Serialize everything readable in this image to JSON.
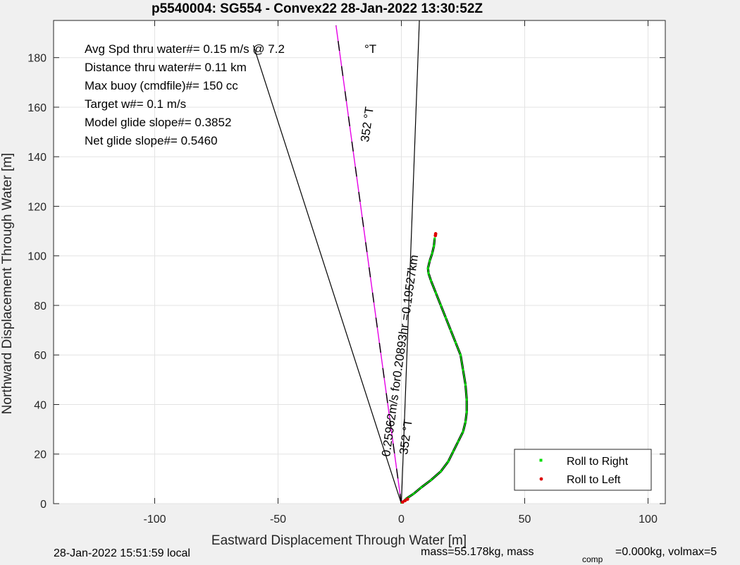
{
  "chart_data": {
    "type": "line",
    "title": "p5540004: SG554 - Convex22 28-Jan-2022 13:30:52Z",
    "xlabel": "Eastward Displacement Through Water [m]",
    "ylabel": "Northward Displacement Through Water [m]",
    "xlim": [
      -141,
      107
    ],
    "ylim": [
      0,
      195
    ],
    "xticks": [
      -100,
      -50,
      0,
      50,
      100
    ],
    "yticks": [
      0,
      20,
      40,
      60,
      80,
      100,
      120,
      140,
      160,
      180
    ],
    "xtick_labels": [
      "-100",
      "-50",
      "0",
      "50",
      "100"
    ],
    "ytick_labels": [
      "0",
      "20",
      "40",
      "60",
      "80",
      "100",
      "120",
      "140",
      "160",
      "180"
    ],
    "grid": true,
    "legend_position": "bottom-right",
    "annotations": [
      "Avg Spd thru water#=  0.15 m/s @   7.2",
      "°T",
      "Distance thru water#=  0.11 km",
      "Max buoy (cmdfile)#= 150 cc",
      "Target w#= 0.1 m/s",
      "Model glide slope#= 0.3852",
      "Net glide slope#= 0.5460"
    ],
    "bearing_label_upper": "352 °T",
    "bearing_label_lower": "352 °T",
    "current_label": "0.25962m/s for0.20893hr =0.19527km",
    "reference_lines": [
      {
        "from": [
          0,
          0
        ],
        "to": [
          -60,
          185
        ],
        "color": "#000000"
      },
      {
        "from": [
          0,
          0
        ],
        "to": [
          7.3,
          195
        ],
        "color": "#000000"
      },
      {
        "from": [
          0,
          0
        ],
        "to": [
          -26.5,
          193
        ],
        "color": "#e600e6",
        "dashed_overlay": "#000000"
      }
    ],
    "series": [
      {
        "name": "Roll to Right",
        "color": "#00dd00",
        "marker": "square",
        "x": [
          0,
          2,
          5,
          8,
          12,
          16,
          19,
          21,
          23,
          25,
          26,
          26.5,
          26.5,
          26,
          25,
          24,
          22,
          20,
          18,
          16,
          14,
          12,
          11,
          10.8,
          11.5,
          12.5,
          13.2,
          13.5
        ],
        "y": [
          0,
          2,
          4,
          6.5,
          9.5,
          13,
          17,
          21,
          25,
          29,
          33,
          37,
          42,
          48,
          54,
          60,
          65,
          70,
          75,
          80,
          85,
          90,
          93,
          95,
          98,
          101,
          104,
          107
        ]
      },
      {
        "name": "Roll to Left",
        "color": "#dd0000",
        "marker": "circle",
        "x": [
          0.5,
          1.5,
          2.5,
          13.8,
          13.9
        ],
        "y": [
          0.6,
          1.2,
          1.8,
          108.2,
          108.9
        ]
      }
    ]
  },
  "footer": {
    "local_time": "28-Jan-2022 15:51:59 local",
    "mass_text": "mass=55.178kg, mass",
    "comp_sub": "comp",
    "volmax_text": "=0.000kg, volmax=5"
  }
}
